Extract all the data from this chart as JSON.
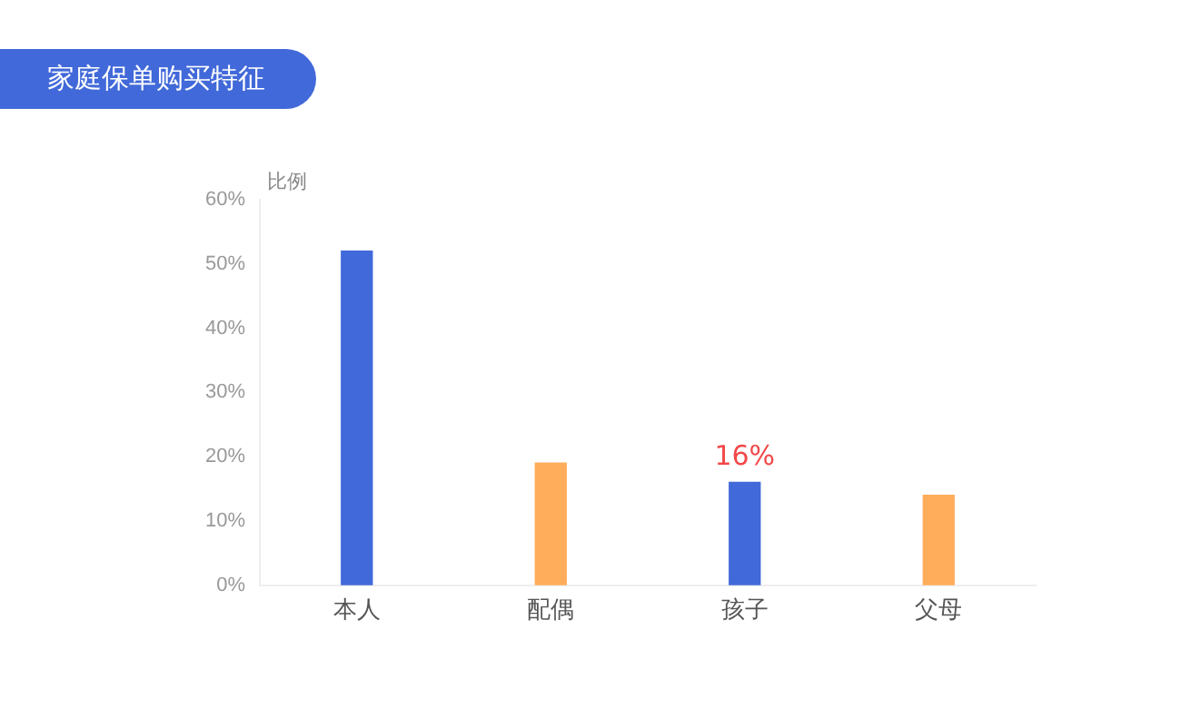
{
  "chart_data": {
    "type": "bar",
    "title": "家庭保单购买特征",
    "ylabel": "比例",
    "categories": [
      "本人",
      "配偶",
      "孩子",
      "父母"
    ],
    "values": [
      52,
      19,
      16,
      14
    ],
    "colors": [
      "#4169d9",
      "#ffad5a",
      "#4169d9",
      "#ffad5a"
    ],
    "value_labels": [
      null,
      null,
      "16%",
      null
    ],
    "ylim": [
      0,
      60
    ],
    "yticks": [
      {
        "value": 0,
        "label": "0%"
      },
      {
        "value": 10,
        "label": "10%"
      },
      {
        "value": 20,
        "label": "20%"
      },
      {
        "value": 30,
        "label": "30%"
      },
      {
        "value": 40,
        "label": "40%"
      },
      {
        "value": 50,
        "label": "50%"
      },
      {
        "value": 60,
        "label": "60%"
      }
    ],
    "grid": false,
    "legend": false
  }
}
